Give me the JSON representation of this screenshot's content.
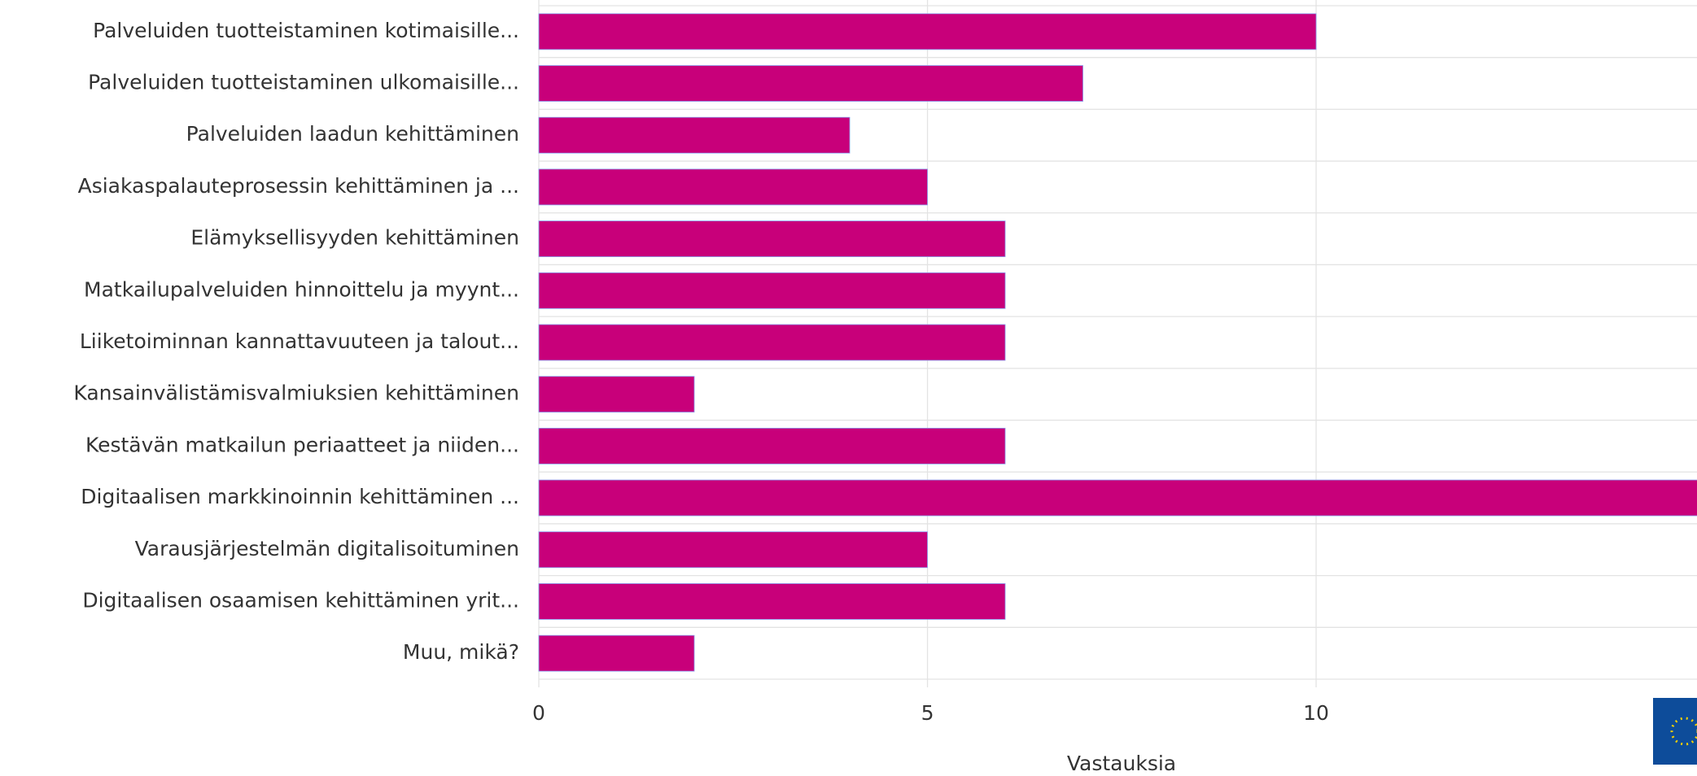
{
  "chart_data": {
    "type": "bar",
    "orientation": "horizontal",
    "categories": [
      "Palveluiden tuotteistaminen kotimaisille...",
      "Palveluiden tuotteistaminen ulkomaisille...",
      "Palveluiden laadun kehittäminen",
      "Asiakaspalauteprosessin kehittäminen ja ...",
      "Elämyksellisyyden kehittäminen",
      "Matkailupalveluiden hinnoittelu ja myynt...",
      "Liiketoiminnan kannattavuuteen ja talout...",
      "Kansainvälistämisvalmiuksien kehittäminen",
      "Kestävän matkailun periaatteet ja niiden...",
      "Digitaalisen markkinoinnin kehittäminen ...",
      "Varausjärjestelmän digitalisoituminen",
      "Digitaalisen osaamisen kehittäminen yrit...",
      "Muu, mikä?"
    ],
    "values": [
      10,
      7,
      4,
      5,
      6,
      6,
      6,
      2,
      6,
      15,
      5,
      6,
      2
    ],
    "color": "#c8007a",
    "xlim": [
      0,
      14.9
    ],
    "xticks": [
      0,
      5,
      10
    ],
    "grid": true,
    "xlabel": "Vastauksia"
  }
}
